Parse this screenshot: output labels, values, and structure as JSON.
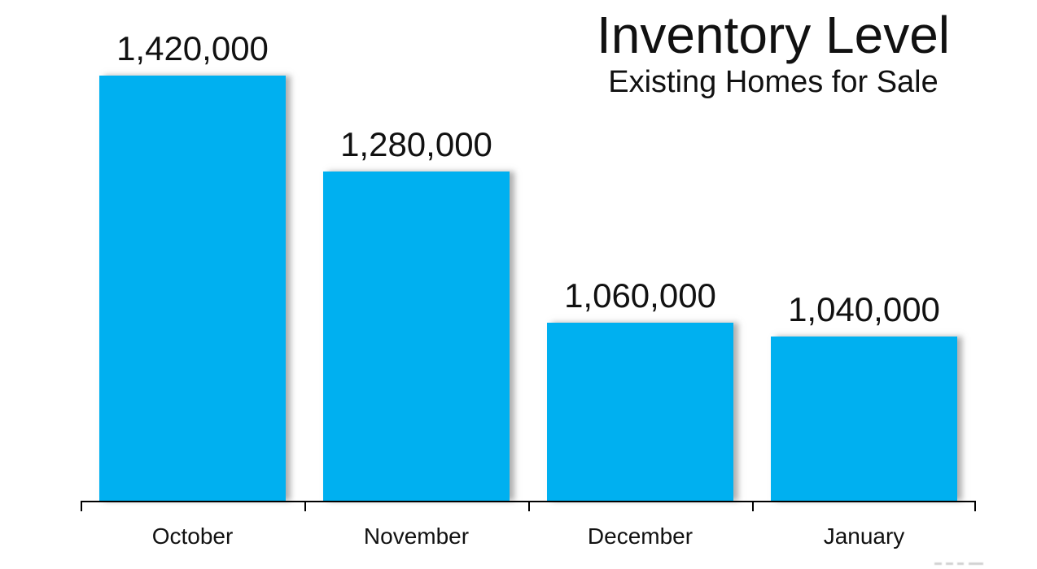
{
  "page": {
    "background_color": "#ffffff",
    "text_color": "#111111"
  },
  "chart_data": {
    "type": "bar",
    "title": "Inventory Level",
    "subtitle": "Existing Homes for Sale",
    "categories": [
      "October",
      "November",
      "December",
      "January"
    ],
    "values": [
      1420000,
      1280000,
      1060000,
      1040000
    ],
    "value_labels": [
      "1,420,000",
      "1,280,000",
      "1,060,000",
      "1,040,000"
    ],
    "xlabel": "",
    "ylabel": "",
    "ylim": [
      800000,
      1420000
    ],
    "bar_color": "#00B0F0",
    "axis_color": "#000000",
    "grid": false,
    "legend": false,
    "y_axis_visible": false,
    "x_axis_visible": true
  }
}
